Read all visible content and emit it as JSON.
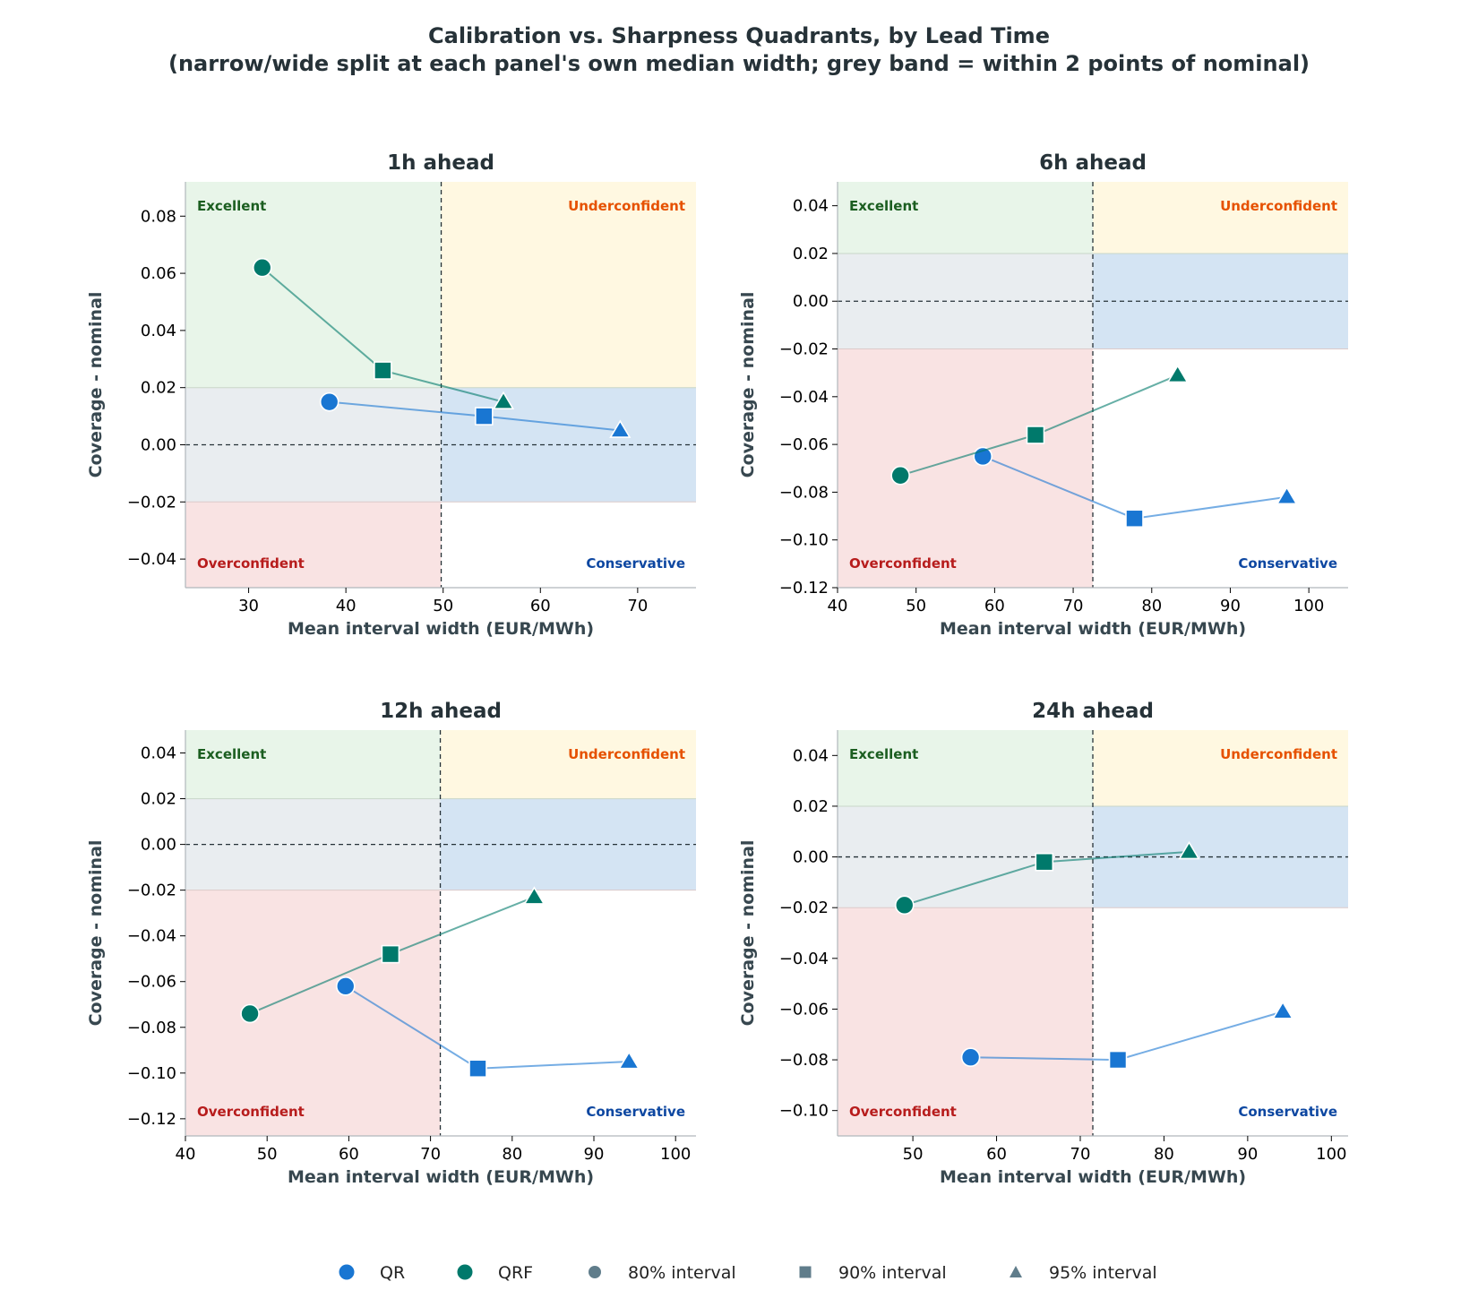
{
  "chart_data": {
    "type": "scatter",
    "title": "Calibration vs. Sharpness Quadrants, by Lead Time",
    "subtitle": "(narrow/wide split at each panel's own median width; grey band = within 2 points of nominal)",
    "xlabel": "Mean interval width (EUR/MWh)",
    "ylabel": "Coverage - nominal",
    "tolerance_band": 0.02,
    "quadrant_labels": {
      "excellent": "Excellent",
      "underconfident": "Underconfident",
      "overconfident": "Overconfident",
      "conservative": "Conservative"
    },
    "colors": {
      "QR": "#1976d2",
      "QRF": "#00796b",
      "excellent": "#e8f5e9",
      "underconfident": "#fff8e1",
      "overconfident": "#f9e3e3",
      "conservative": "#d4e4f3",
      "band": "#e9edf0",
      "excellent_text": "#1b5e20",
      "underconfident_text": "#e65100",
      "overconfident_text": "#b71c1c",
      "conservative_text": "#0d47a1",
      "legend_interval": "#607d8b"
    },
    "legend": {
      "placement": "bottom-center",
      "models": [
        "QR",
        "QRF"
      ],
      "intervals": [
        "80% interval",
        "90% interval",
        "95% interval"
      ]
    },
    "panels": [
      {
        "title": "1h ahead",
        "xlim": [
          23.5,
          76
        ],
        "ylim": [
          -0.05,
          0.092
        ],
        "xticks": [
          30,
          40,
          50,
          60,
          70
        ],
        "yticks": [
          -0.04,
          -0.02,
          0.0,
          0.02,
          0.04,
          0.06,
          0.08
        ],
        "median_width": 49.8,
        "series": [
          {
            "name": "QR",
            "x": [
              38.3,
              54.2,
              68.2
            ],
            "y": [
              0.015,
              0.01,
              0.005
            ]
          },
          {
            "name": "QRF",
            "x": [
              31.4,
              43.8,
              56.2
            ],
            "y": [
              0.062,
              0.026,
              0.015
            ]
          }
        ]
      },
      {
        "title": "6h ahead",
        "xlim": [
          40,
          105
        ],
        "ylim": [
          -0.12,
          0.05
        ],
        "xticks": [
          40,
          50,
          60,
          70,
          80,
          90,
          100
        ],
        "yticks": [
          -0.12,
          -0.1,
          -0.08,
          -0.06,
          -0.04,
          -0.02,
          0.0,
          0.02,
          0.04
        ],
        "median_width": 72.5,
        "series": [
          {
            "name": "QR",
            "x": [
              58.5,
              77.8,
              97.2
            ],
            "y": [
              -0.065,
              -0.091,
              -0.082
            ]
          },
          {
            "name": "QRF",
            "x": [
              48.0,
              65.2,
              83.3
            ],
            "y": [
              -0.073,
              -0.056,
              -0.031
            ]
          }
        ]
      },
      {
        "title": "12h ahead",
        "xlim": [
          40,
          102.5
        ],
        "ylim": [
          -0.1275,
          0.05
        ],
        "xticks": [
          40,
          50,
          60,
          70,
          80,
          90,
          100
        ],
        "yticks": [
          -0.12,
          -0.1,
          -0.08,
          -0.06,
          -0.04,
          -0.02,
          0.0,
          0.02,
          0.04
        ],
        "median_width": 71.2,
        "series": [
          {
            "name": "QR",
            "x": [
              59.6,
              75.8,
              94.3
            ],
            "y": [
              -0.062,
              -0.098,
              -0.095
            ]
          },
          {
            "name": "QRF",
            "x": [
              47.9,
              65.1,
              82.7
            ],
            "y": [
              -0.074,
              -0.048,
              -0.023
            ]
          }
        ]
      },
      {
        "title": "24h ahead",
        "xlim": [
          41,
          102
        ],
        "ylim": [
          -0.11,
          0.05
        ],
        "xticks": [
          50,
          60,
          70,
          80,
          90,
          100
        ],
        "yticks": [
          -0.1,
          -0.08,
          -0.06,
          -0.04,
          -0.02,
          0.0,
          0.02,
          0.04
        ],
        "median_width": 71.5,
        "series": [
          {
            "name": "QR",
            "x": [
              56.9,
              74.5,
              94.2
            ],
            "y": [
              -0.079,
              -0.08,
              -0.061
            ]
          },
          {
            "name": "QRF",
            "x": [
              49.0,
              65.7,
              83.0
            ],
            "y": [
              -0.019,
              -0.002,
              0.002
            ]
          }
        ]
      }
    ]
  }
}
